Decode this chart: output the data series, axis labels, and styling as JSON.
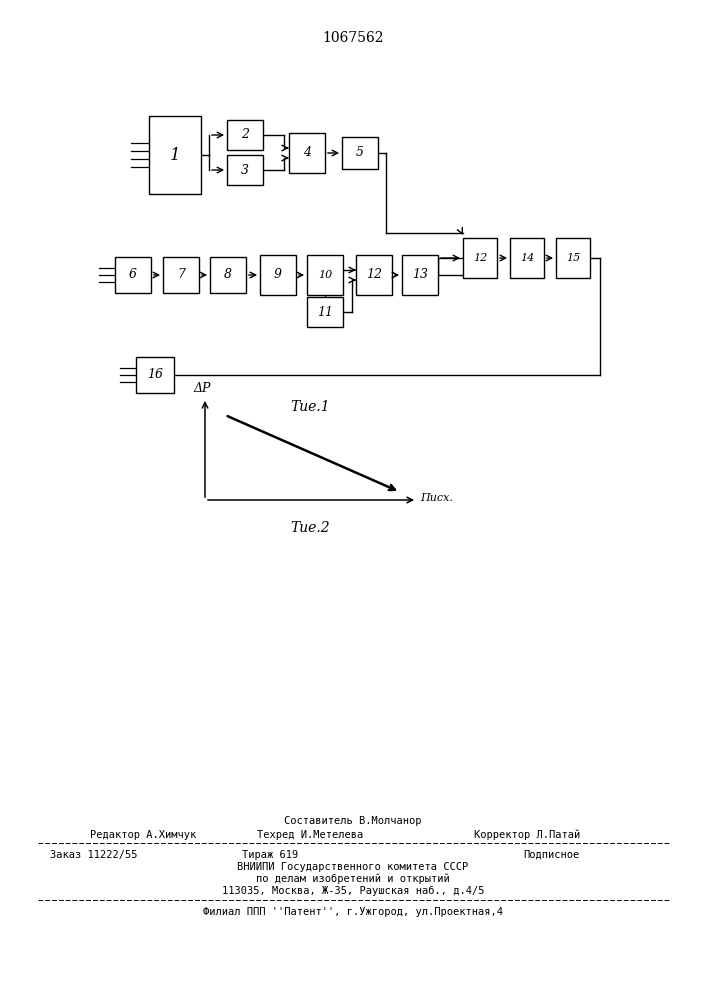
{
  "title": "1067562",
  "fig1_label": "Τие.1",
  "fig2_label": "Τие.2",
  "ylabel": "ΔР",
  "xlabel": "Πисх.",
  "bg": "#ffffff"
}
